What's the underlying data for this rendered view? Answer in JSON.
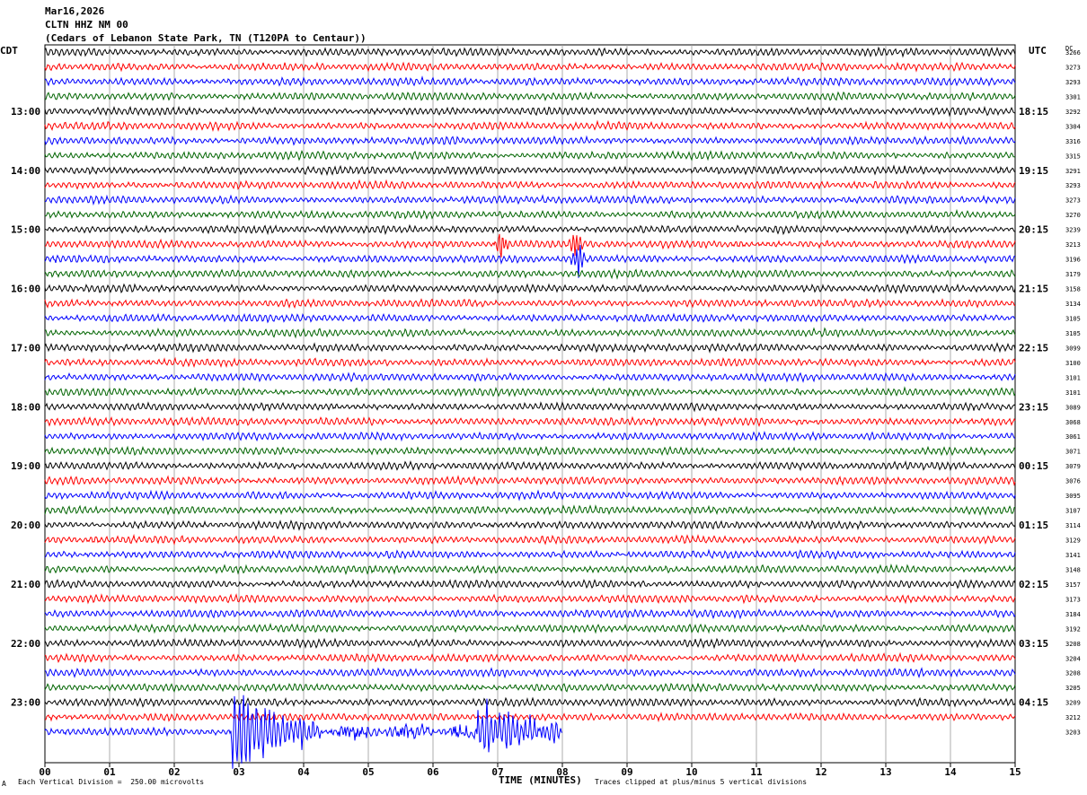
{
  "header": {
    "date": "Mar16,2026",
    "station": "CLTN HHZ NM 00",
    "location": "(Cedars of Lebanon State Park, TN (T120PA to Centaur))"
  },
  "left_timezone": "CDT",
  "right_timezone": "UTC",
  "dc_label": "DC",
  "footer": {
    "scale": "Each Vertical Division =  250.00 microvolts",
    "clip": "Traces clipped at plus/minus 5 vertical divisions",
    "mark": "A"
  },
  "colors": {
    "black": "#000000",
    "red": "#ff0000",
    "blue": "#0000ff",
    "green": "#006400"
  },
  "chart_data": {
    "type": "line",
    "title": "CLTN HHZ NM 00",
    "xlabel": "TIME (MINUTES)",
    "x_ticks": [
      "00",
      "01",
      "02",
      "03",
      "04",
      "05",
      "06",
      "07",
      "08",
      "09",
      "10",
      "11",
      "12",
      "13",
      "14",
      "15"
    ],
    "xlim": [
      0,
      15
    ],
    "trace_minutes": 15,
    "trace_color_cycle": [
      "black",
      "red",
      "blue",
      "green"
    ],
    "left_hour_labels": [
      "13:00",
      "14:00",
      "15:00",
      "16:00",
      "17:00",
      "18:00",
      "19:00",
      "20:00",
      "21:00",
      "22:00",
      "23:00"
    ],
    "right_hour_labels": [
      "18:15",
      "19:15",
      "20:15",
      "21:15",
      "22:15",
      "23:15",
      "00:15",
      "01:15",
      "02:15",
      "03:15",
      "04:15"
    ],
    "dc_offsets": [
      3266,
      3273,
      3293,
      3301,
      3292,
      3304,
      3316,
      3315,
      3291,
      3293,
      3273,
      3270,
      3239,
      3213,
      3196,
      3179,
      3158,
      3134,
      3105,
      3105,
      3099,
      3100,
      3101,
      3101,
      3089,
      3068,
      3061,
      3071,
      3079,
      3076,
      3095,
      3107,
      3114,
      3129,
      3141,
      3148,
      3157,
      3173,
      3184,
      3192,
      3208,
      3204,
      3208,
      3205,
      3209,
      3212,
      3203
    ],
    "last_trace_end_minutes": 8.0,
    "events": [
      {
        "trace_index": 13,
        "minute": 7.05,
        "amplitude": 2.6
      },
      {
        "trace_index": 13,
        "minute": 8.2,
        "amplitude": 2.4
      },
      {
        "trace_index": 14,
        "minute": 8.25,
        "amplitude": 3.0
      },
      {
        "trace_index": 46,
        "minute": 3.0,
        "amplitude": 6.0
      },
      {
        "trace_index": 46,
        "minute": 6.8,
        "amplitude": 4.0
      }
    ]
  }
}
